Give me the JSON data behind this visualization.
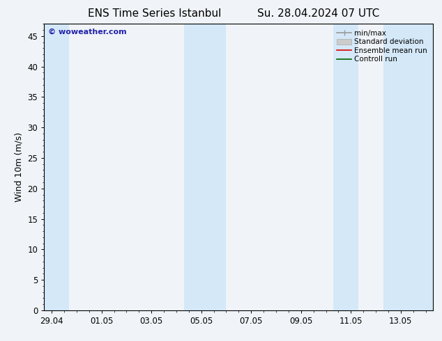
{
  "title_left": "ENS Time Series Istanbul",
  "title_right": "Su. 28.04.2024 07 UTC",
  "ylabel": "Wind 10m (m/s)",
  "ylim": [
    0,
    47
  ],
  "yticks": [
    0,
    5,
    10,
    15,
    20,
    25,
    30,
    35,
    40,
    45
  ],
  "xtick_labels": [
    "29.04",
    "01.05",
    "03.05",
    "05.05",
    "07.05",
    "09.05",
    "11.05",
    "13.05"
  ],
  "bg_color": "#f0f4f8",
  "plot_bg_color": "#f0f4f8",
  "shaded_band_color": "#d4e8f8",
  "watermark_text": "© woweather.com",
  "watermark_color": "#2222aa",
  "legend_labels": [
    "min/max",
    "Standard deviation",
    "Ensemble mean run",
    "Controll run"
  ],
  "grid_color": "#cccccc",
  "title_fontsize": 11,
  "label_fontsize": 9,
  "tick_fontsize": 8.5,
  "legend_fontsize": 7.5
}
